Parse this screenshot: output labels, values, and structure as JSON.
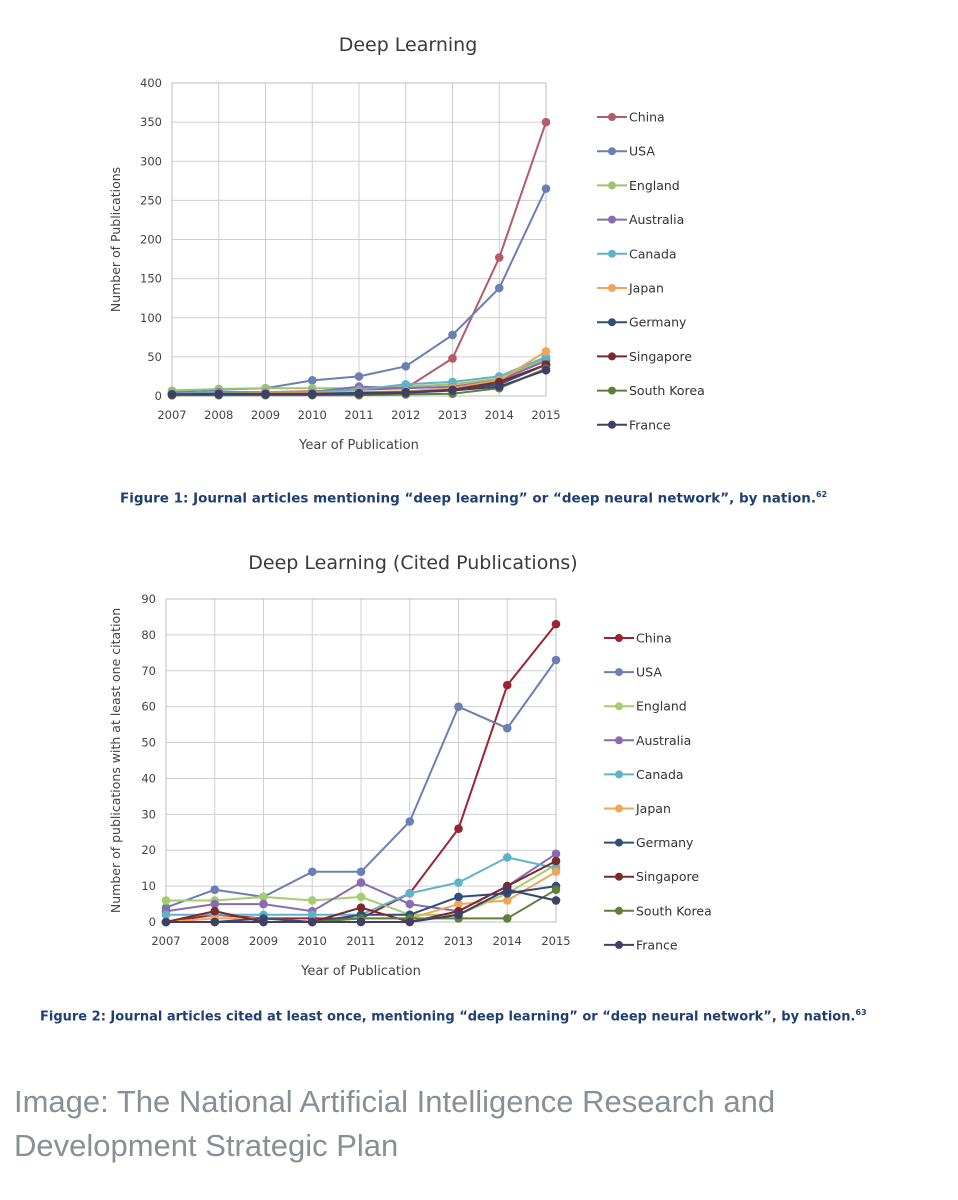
{
  "chart_data": [
    {
      "type": "line",
      "title": "Deep Learning",
      "xlabel": "Year of Publication",
      "ylabel": "Number of Publications",
      "x": [
        "2007",
        "2008",
        "2009",
        "2010",
        "2011",
        "2012",
        "2013",
        "2014",
        "2015"
      ],
      "ylim": [
        0,
        400
      ],
      "yticks": [
        "0",
        "50",
        "100",
        "150",
        "200",
        "250",
        "300",
        "350",
        "400"
      ],
      "grid": true,
      "legend_position": "right",
      "series": [
        {
          "name": "China",
          "color": "#b35a6b",
          "values": [
            2,
            5,
            5,
            6,
            8,
            10,
            48,
            177,
            350
          ]
        },
        {
          "name": "USA",
          "color": "#6c7fb4",
          "values": [
            5,
            8,
            10,
            20,
            25,
            38,
            78,
            138,
            265
          ]
        },
        {
          "name": "England",
          "color": "#9cc46a",
          "values": [
            7,
            9,
            10,
            10,
            10,
            12,
            15,
            22,
            48
          ]
        },
        {
          "name": "Australia",
          "color": "#8a6bb0",
          "values": [
            3,
            5,
            5,
            5,
            12,
            10,
            12,
            20,
            45
          ]
        },
        {
          "name": "Canada",
          "color": "#5fb3c9",
          "values": [
            3,
            4,
            5,
            5,
            8,
            15,
            18,
            25,
            50
          ]
        },
        {
          "name": "Japan",
          "color": "#f0a55a",
          "values": [
            2,
            3,
            4,
            4,
            5,
            6,
            10,
            20,
            57
          ]
        },
        {
          "name": "Germany",
          "color": "#2f4f7a",
          "values": [
            2,
            3,
            3,
            3,
            4,
            5,
            8,
            15,
            40
          ]
        },
        {
          "name": "Singapore",
          "color": "#7a2a2a",
          "values": [
            1,
            2,
            2,
            2,
            3,
            4,
            8,
            18,
            40
          ]
        },
        {
          "name": "South Korea",
          "color": "#5f7f3a",
          "values": [
            1,
            1,
            1,
            1,
            1,
            2,
            3,
            10,
            35
          ]
        },
        {
          "name": "France",
          "color": "#3f3f6a",
          "values": [
            2,
            2,
            2,
            2,
            3,
            4,
            7,
            12,
            33
          ]
        }
      ]
    },
    {
      "type": "line",
      "title": "Deep Learning (Cited Publications)",
      "xlabel": "Year of Publication",
      "ylabel": "Number of publications with at least one citation",
      "x": [
        "2007",
        "2008",
        "2009",
        "2010",
        "2011",
        "2012",
        "2013",
        "2014",
        "2015"
      ],
      "ylim": [
        0,
        90
      ],
      "yticks": [
        "0",
        "10",
        "20",
        "30",
        "40",
        "50",
        "60",
        "70",
        "80",
        "90"
      ],
      "grid": true,
      "legend_position": "right",
      "series": [
        {
          "name": "China",
          "color": "#9b2335",
          "values": [
            0,
            2,
            1,
            1,
            1,
            8,
            26,
            66,
            83
          ]
        },
        {
          "name": "USA",
          "color": "#6c7fb4",
          "values": [
            4,
            9,
            7,
            14,
            14,
            28,
            60,
            54,
            73
          ]
        },
        {
          "name": "England",
          "color": "#a6cc6e",
          "values": [
            6,
            6,
            7,
            6,
            7,
            2,
            2,
            8,
            16
          ]
        },
        {
          "name": "Australia",
          "color": "#8a6bb0",
          "values": [
            3,
            5,
            5,
            3,
            11,
            5,
            3,
            10,
            19
          ]
        },
        {
          "name": "Canada",
          "color": "#5fb3c9",
          "values": [
            2,
            2,
            2,
            2,
            2,
            8,
            11,
            18,
            15
          ]
        },
        {
          "name": "Japan",
          "color": "#f0a55a",
          "values": [
            0,
            1,
            1,
            0,
            1,
            1,
            5,
            6,
            14
          ]
        },
        {
          "name": "Germany",
          "color": "#2f4f7a",
          "values": [
            0,
            0,
            1,
            0,
            2,
            2,
            7,
            8,
            10
          ]
        },
        {
          "name": "Singapore",
          "color": "#7a2a2a",
          "values": [
            0,
            3,
            0,
            0,
            4,
            0,
            3,
            10,
            17
          ]
        },
        {
          "name": "South Korea",
          "color": "#5f7f3a",
          "values": [
            0,
            0,
            0,
            0,
            1,
            1,
            1,
            1,
            9
          ]
        },
        {
          "name": "France",
          "color": "#3f3f6a",
          "values": [
            0,
            0,
            0,
            0,
            0,
            0,
            2,
            9,
            6
          ]
        }
      ]
    }
  ],
  "captions": {
    "figure1": "Figure 1: Journal articles mentioning “deep learning” or “deep neural network”, by nation.",
    "figure1_ref": "62",
    "figure2": "Figure 2: Journal articles cited at least once, mentioning “deep learning” or “deep neural network”, by nation.",
    "figure2_ref": "63"
  },
  "credit": "Image: The National Artificial Intelligence Research and Development Strategic Plan"
}
